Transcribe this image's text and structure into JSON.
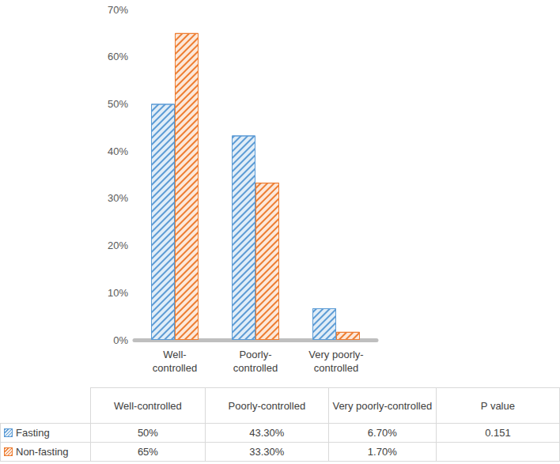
{
  "chart_data": {
    "type": "bar",
    "categories": [
      "Well-controlled",
      "Poorly-controlled",
      "Very poorly-controlled"
    ],
    "series": [
      {
        "name": "Fasting",
        "color": "#5b9bd5",
        "values": [
          50,
          43.3,
          6.7
        ]
      },
      {
        "name": "Non-fasting",
        "color": "#ed7d31",
        "values": [
          65,
          33.3,
          1.7
        ]
      }
    ],
    "ylim": [
      0,
      70
    ],
    "yticks": [
      {
        "value": 0,
        "label": "0%"
      },
      {
        "value": 10,
        "label": "10%"
      },
      {
        "value": 20,
        "label": "20%"
      },
      {
        "value": 30,
        "label": "30%"
      },
      {
        "value": 40,
        "label": "40%"
      },
      {
        "value": 50,
        "label": "50%"
      },
      {
        "value": 60,
        "label": "60%"
      },
      {
        "value": 70,
        "label": "70%"
      }
    ],
    "grid": false,
    "data_labels": false
  },
  "table": {
    "columns": [
      "Well-controlled",
      "Poorly-controlled",
      "Very poorly-controlled",
      "P value"
    ],
    "rows": [
      [
        "50%",
        "43.30%",
        "6.70%",
        "0.151"
      ],
      [
        "65%",
        "33.30%",
        "1.70%"
      ]
    ]
  }
}
